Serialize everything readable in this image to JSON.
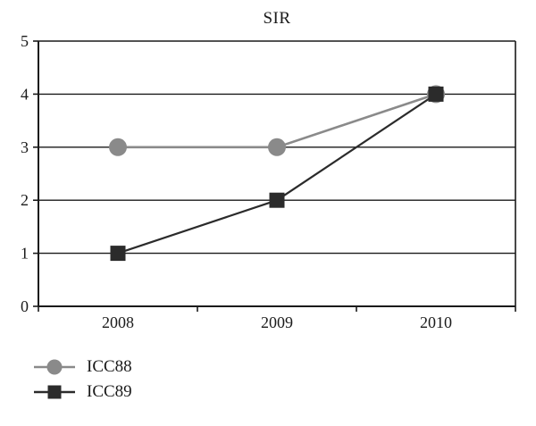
{
  "chart_data": {
    "type": "line",
    "title": "SIR",
    "categories": [
      "2008",
      "2009",
      "2010"
    ],
    "series": [
      {
        "name": "ICC88",
        "values": [
          3,
          3,
          4
        ],
        "color": "#8a8a8a",
        "marker": "circle"
      },
      {
        "name": "ICC89",
        "values": [
          1,
          2,
          4
        ],
        "color": "#2b2b2b",
        "marker": "square"
      }
    ],
    "xlabel": "",
    "ylabel": "",
    "ylim": [
      0,
      5
    ],
    "yticks": [
      0,
      1,
      2,
      3,
      4,
      5
    ],
    "grid": true,
    "legend_position": "bottom-left",
    "axis_color": "#1a1a1a",
    "background": "#ffffff"
  }
}
